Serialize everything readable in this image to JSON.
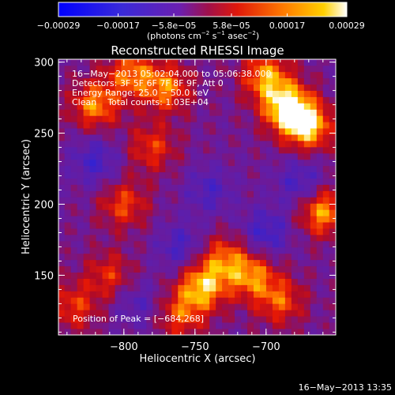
{
  "colorbar": {
    "tick_labels": [
      "−0.00029",
      "−0.00017",
      "−5.8e−05",
      "5.8e−05",
      "0.00017",
      "0.00029"
    ],
    "tick_values": [
      -0.00029,
      -0.00017,
      -5.8e-05,
      5.8e-05,
      0.00017,
      0.00029
    ],
    "range": [
      -0.00029,
      0.00029
    ],
    "units_main": "(photons cm",
    "units_exp1": "−2",
    "units_mid": " s",
    "units_exp2": "−1",
    "units_end": " asec",
    "units_exp3": "−2",
    "units_close": ")"
  },
  "chart_data": {
    "type": "heatmap",
    "title": "Reconstructed RHESSI Image",
    "xlabel": "Heliocentric X (arcsec)",
    "ylabel": "Heliocentric Y (arcsec)",
    "xlim": [
      -846,
      -651
    ],
    "ylim": [
      108,
      302
    ],
    "x_ticks": [
      {
        "label": "−800",
        "value": -800
      },
      {
        "label": "−750",
        "value": -750
      },
      {
        "label": "−700",
        "value": -700
      }
    ],
    "y_ticks": [
      {
        "label": "300",
        "value": 300
      },
      {
        "label": "250",
        "value": 250
      },
      {
        "label": "200",
        "value": 200
      },
      {
        "label": "150",
        "value": 150
      }
    ],
    "annotations": [
      "16−May−2013 05:02:04.000 to 05:06:38.000",
      "Detectors: 3F 5F 6F 7F 8F 9F, Att 0",
      "Energy Range: 25.0 − 50.0 keV",
      "Clean    Total counts: 1.03E+04"
    ],
    "peak_label": "Position of Peak = [−684,268]",
    "peak": [
      -684,
      268
    ],
    "colormap": "blue-purple-red-yellow-white",
    "features": [
      {
        "x": -685,
        "y": 268,
        "value": 0.00029
      },
      {
        "x": -670,
        "y": 255,
        "value": 0.00025
      },
      {
        "x": -700,
        "y": 290,
        "value": 0.00021
      },
      {
        "x": -745,
        "y": 142,
        "value": 0.00023
      },
      {
        "x": -710,
        "y": 150,
        "value": 0.00019
      },
      {
        "x": -730,
        "y": 162,
        "value": 0.00016
      },
      {
        "x": -820,
        "y": 270,
        "value": 0.0002
      },
      {
        "x": -795,
        "y": 292,
        "value": 0.00018
      },
      {
        "x": -770,
        "y": 282,
        "value": 0.00019
      },
      {
        "x": -800,
        "y": 200,
        "value": 0.00015
      },
      {
        "x": -780,
        "y": 240,
        "value": 0.00014
      },
      {
        "x": -760,
        "y": 122,
        "value": 0.00015
      },
      {
        "x": -660,
        "y": 195,
        "value": 0.00022
      },
      {
        "x": -690,
        "y": 132,
        "value": 0.00016
      },
      {
        "x": -810,
        "y": 150,
        "value": 0.00013
      },
      {
        "x": -835,
        "y": 128,
        "value": 0.00014
      },
      {
        "x": -740,
        "y": 210,
        "value": -0.0001
      },
      {
        "x": -820,
        "y": 230,
        "value": -0.00012
      },
      {
        "x": -760,
        "y": 170,
        "value": -0.00011
      },
      {
        "x": -700,
        "y": 180,
        "value": -0.00013
      },
      {
        "x": -675,
        "y": 215,
        "value": -0.00012
      },
      {
        "x": -790,
        "y": 130,
        "value": -9e-05
      }
    ]
  },
  "footer": {
    "timestamp": "16−May−2013 13:35"
  },
  "colors": {
    "background": "#000000",
    "foreground": "#ffffff"
  }
}
